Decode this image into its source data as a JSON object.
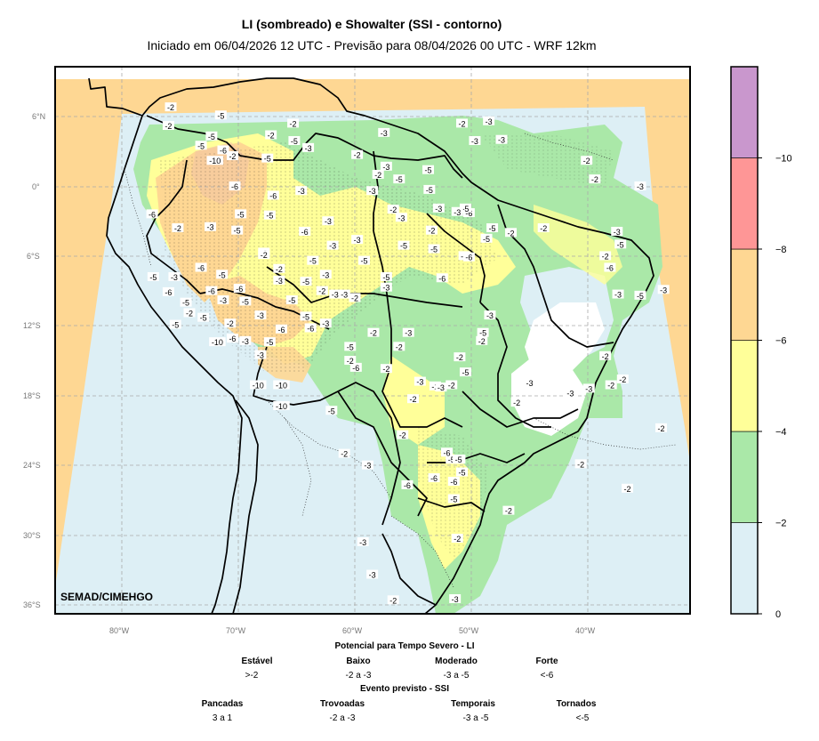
{
  "title": "LI (sombreado) e Showalter (SSI - contorno)",
  "subtitle": "Iniciado em 06/04/2026 12 UTC - Previsão para 08/04/2026 00 UTC - WRF 12km",
  "credit": "SEMAD/CIMEHGO",
  "lat_ticks": [
    "6°N",
    "0°",
    "6°S",
    "12°S",
    "18°S",
    "24°S",
    "30°S",
    "36°S"
  ],
  "lon_ticks": [
    "80°W",
    "70°W",
    "60°W",
    "50°W",
    "40°W"
  ],
  "colorbar": {
    "colors": [
      "#ddeff5",
      "#aae8a8",
      "#ffff99",
      "#fed793",
      "#fe9696",
      "#c997cd"
    ],
    "tick_labels": [
      "0",
      "−2",
      "−4",
      "−6",
      "−8",
      "−10"
    ]
  },
  "li_legend": {
    "heading": "Potencial para Tempo Severo - LI",
    "categories": [
      {
        "name": "Estável",
        "value": ">-2"
      },
      {
        "name": "Baixo",
        "value": "-2 a -3"
      },
      {
        "name": "Moderado",
        "value": "-3 a -5"
      },
      {
        "name": "Forte",
        "value": "<-6"
      }
    ]
  },
  "ssi_legend": {
    "heading": "Evento previsto - SSI",
    "categories": [
      {
        "name": "Pancadas",
        "value": "3 a 1"
      },
      {
        "name": "Trovoadas",
        "value": "-2 a -3"
      },
      {
        "name": "Temporais",
        "value": "-3 a -5"
      },
      {
        "name": "Tornados",
        "value": "<-5"
      }
    ]
  },
  "contour_labels": [
    {
      "t": "-2",
      "lon": -75.8,
      "lat": 6.8
    },
    {
      "t": "-5",
      "lon": -71.5,
      "lat": 6.1
    },
    {
      "t": "-2",
      "lon": -76.0,
      "lat": 5.2
    },
    {
      "t": "-5",
      "lon": -72.3,
      "lat": 4.3
    },
    {
      "t": "-5",
      "lon": -73.2,
      "lat": 3.5
    },
    {
      "t": "-6",
      "lon": -71.3,
      "lat": 3.1
    },
    {
      "t": "-10",
      "lon": -72.0,
      "lat": 2.2
    },
    {
      "t": "-2",
      "lon": -70.5,
      "lat": 2.6
    },
    {
      "t": "-2",
      "lon": -67.2,
      "lat": 4.4
    },
    {
      "t": "-5",
      "lon": -65.2,
      "lat": 3.9
    },
    {
      "t": "-3",
      "lon": -64.0,
      "lat": 3.3
    },
    {
      "t": "-2",
      "lon": -65.3,
      "lat": 5.4
    },
    {
      "t": "-5",
      "lon": -67.5,
      "lat": 2.4
    },
    {
      "t": "-6",
      "lon": -70.3,
      "lat": 0.0
    },
    {
      "t": "-6",
      "lon": -67.0,
      "lat": -0.8
    },
    {
      "t": "-3",
      "lon": -64.6,
      "lat": -0.4
    },
    {
      "t": "-6",
      "lon": -77.4,
      "lat": -2.4
    },
    {
      "t": "-2",
      "lon": -75.2,
      "lat": -3.6
    },
    {
      "t": "-5",
      "lon": -69.8,
      "lat": -2.4
    },
    {
      "t": "-5",
      "lon": -67.3,
      "lat": -2.5
    },
    {
      "t": "-3",
      "lon": -72.4,
      "lat": -3.5
    },
    {
      "t": "-5",
      "lon": -70.1,
      "lat": -3.8
    },
    {
      "t": "-2",
      "lon": -67.8,
      "lat": -5.7
    },
    {
      "t": "-6",
      "lon": -64.3,
      "lat": -3.9
    },
    {
      "t": "-3",
      "lon": -62.3,
      "lat": -3.0
    },
    {
      "t": "-3",
      "lon": -59.8,
      "lat": -4.6
    },
    {
      "t": "-5",
      "lon": -59.2,
      "lat": -6.4
    },
    {
      "t": "-3",
      "lon": -61.9,
      "lat": -5.1
    },
    {
      "t": "-5",
      "lon": -63.6,
      "lat": -6.4
    },
    {
      "t": "-3",
      "lon": -62.5,
      "lat": -7.6
    },
    {
      "t": "-2",
      "lon": -66.5,
      "lat": -7.1
    },
    {
      "t": "-3",
      "lon": -66.5,
      "lat": -8.1
    },
    {
      "t": "-6",
      "lon": -73.2,
      "lat": -7.0
    },
    {
      "t": "-5",
      "lon": -71.4,
      "lat": -7.6
    },
    {
      "t": "-3",
      "lon": -75.5,
      "lat": -7.8
    },
    {
      "t": "-5",
      "lon": -77.3,
      "lat": -7.8
    },
    {
      "t": "-6",
      "lon": -72.3,
      "lat": -9.0
    },
    {
      "t": "-6",
      "lon": -69.9,
      "lat": -8.8
    },
    {
      "t": "-5",
      "lon": -65.4,
      "lat": -9.8
    },
    {
      "t": "-3",
      "lon": -61.7,
      "lat": -9.3
    },
    {
      "t": "-3",
      "lon": -60.9,
      "lat": -9.3
    },
    {
      "t": "-2",
      "lon": -60.0,
      "lat": -9.6
    },
    {
      "t": "-2",
      "lon": -62.8,
      "lat": -9.0
    },
    {
      "t": "-5",
      "lon": -64.2,
      "lat": -8.2
    },
    {
      "t": "-3",
      "lon": -57.3,
      "lat": -8.7
    },
    {
      "t": "-5",
      "lon": -57.3,
      "lat": -7.8
    },
    {
      "t": "-3",
      "lon": -56.0,
      "lat": -2.7
    },
    {
      "t": "-2",
      "lon": -53.4,
      "lat": -3.8
    },
    {
      "t": "-5",
      "lon": -55.8,
      "lat": -5.1
    },
    {
      "t": "-5",
      "lon": -53.2,
      "lat": -5.4
    },
    {
      "t": "-3",
      "lon": -50.6,
      "lat": -6.0
    },
    {
      "t": "-6",
      "lon": -50.2,
      "lat": -6.1
    },
    {
      "t": "-6",
      "lon": -52.5,
      "lat": -7.9
    },
    {
      "t": "-5",
      "lon": -48.7,
      "lat": -4.5
    },
    {
      "t": "-5",
      "lon": -48.2,
      "lat": -3.6
    },
    {
      "t": "-6",
      "lon": -50.2,
      "lat": -2.3
    },
    {
      "t": "-5",
      "lon": -50.5,
      "lat": -1.9
    },
    {
      "t": "-3",
      "lon": -51.2,
      "lat": -2.2
    },
    {
      "t": "-3",
      "lon": -52.8,
      "lat": -1.9
    },
    {
      "t": "-5",
      "lon": -53.6,
      "lat": -0.3
    },
    {
      "t": "-5",
      "lon": -56.2,
      "lat": 0.6
    },
    {
      "t": "-3",
      "lon": -57.3,
      "lat": 1.7
    },
    {
      "t": "-2",
      "lon": -59.8,
      "lat": 2.7
    },
    {
      "t": "-2",
      "lon": -58.0,
      "lat": 1.0
    },
    {
      "t": "-3",
      "lon": -58.5,
      "lat": -0.4
    },
    {
      "t": "-2",
      "lon": -56.7,
      "lat": -2.0
    },
    {
      "t": "-3",
      "lon": -57.5,
      "lat": 4.6
    },
    {
      "t": "-2",
      "lon": -50.8,
      "lat": 5.4
    },
    {
      "t": "-3",
      "lon": -48.5,
      "lat": 5.6
    },
    {
      "t": "-3",
      "lon": -49.7,
      "lat": 3.9
    },
    {
      "t": "-3",
      "lon": -47.4,
      "lat": 4.0
    },
    {
      "t": "-2",
      "lon": -40.1,
      "lat": 2.2
    },
    {
      "t": "-2",
      "lon": -39.4,
      "lat": 0.6
    },
    {
      "t": "-3",
      "lon": -35.5,
      "lat": 0.0
    },
    {
      "t": "-5",
      "lon": -53.7,
      "lat": 1.4
    },
    {
      "t": "-2",
      "lon": -46.6,
      "lat": -4.0
    },
    {
      "t": "-2",
      "lon": -43.8,
      "lat": -3.6
    },
    {
      "t": "-2",
      "lon": -38.5,
      "lat": -6.0
    },
    {
      "t": "-6",
      "lon": -38.1,
      "lat": -7.0
    },
    {
      "t": "-3",
      "lon": -37.5,
      "lat": -3.9
    },
    {
      "t": "-5",
      "lon": -37.2,
      "lat": -5.0
    },
    {
      "t": "-3",
      "lon": -37.4,
      "lat": -9.3
    },
    {
      "t": "-5",
      "lon": -35.5,
      "lat": -9.4
    },
    {
      "t": "-3",
      "lon": -33.5,
      "lat": -8.9
    },
    {
      "t": "-3",
      "lon": -48.4,
      "lat": -11.1
    },
    {
      "t": "-5",
      "lon": -49.0,
      "lat": -12.6
    },
    {
      "t": "-2",
      "lon": -49.1,
      "lat": -13.3
    },
    {
      "t": "-2",
      "lon": -58.4,
      "lat": -12.6
    },
    {
      "t": "-6",
      "lon": -59.9,
      "lat": -15.6
    },
    {
      "t": "-3",
      "lon": -55.4,
      "lat": -12.6
    },
    {
      "t": "-2",
      "lon": -56.2,
      "lat": -13.8
    },
    {
      "t": "-5",
      "lon": -60.4,
      "lat": -13.8
    },
    {
      "t": "-2",
      "lon": -60.4,
      "lat": -15.0
    },
    {
      "t": "-2",
      "lon": -57.3,
      "lat": -15.7
    },
    {
      "t": "-3",
      "lon": -54.4,
      "lat": -16.8
    },
    {
      "t": "-2",
      "lon": -53.1,
      "lat": -17.2
    },
    {
      "t": "-2",
      "lon": -51.7,
      "lat": -17.1
    },
    {
      "t": "-3",
      "lon": -52.6,
      "lat": -17.3
    },
    {
      "t": "-2",
      "lon": -51.0,
      "lat": -14.7
    },
    {
      "t": "-5",
      "lon": -50.5,
      "lat": -16.0
    },
    {
      "t": "-3",
      "lon": -45.0,
      "lat": -16.9
    },
    {
      "t": "-2",
      "lon": -46.1,
      "lat": -18.6
    },
    {
      "t": "-3",
      "lon": -41.5,
      "lat": -17.8
    },
    {
      "t": "-2",
      "lon": -38.5,
      "lat": -14.6
    },
    {
      "t": "-3",
      "lon": -39.9,
      "lat": -17.4
    },
    {
      "t": "-2",
      "lon": -38.0,
      "lat": -17.1
    },
    {
      "t": "-2",
      "lon": -37.0,
      "lat": -16.6
    },
    {
      "t": "-2",
      "lon": -33.7,
      "lat": -20.8
    },
    {
      "t": "-2",
      "lon": -40.6,
      "lat": -23.9
    },
    {
      "t": "-2",
      "lon": -36.6,
      "lat": -26.0
    },
    {
      "t": "-2",
      "lon": -46.8,
      "lat": -27.9
    },
    {
      "t": "-2",
      "lon": -55.0,
      "lat": -18.3
    },
    {
      "t": "-2",
      "lon": -55.9,
      "lat": -21.4
    },
    {
      "t": "-2",
      "lon": -60.9,
      "lat": -23.0
    },
    {
      "t": "-3",
      "lon": -58.9,
      "lat": -24.0
    },
    {
      "t": "-5",
      "lon": -51.7,
      "lat": -23.5
    },
    {
      "t": "-6",
      "lon": -51.0,
      "lat": -23.5
    },
    {
      "t": "-6",
      "lon": -52.1,
      "lat": -22.9
    },
    {
      "t": "-5",
      "lon": -50.8,
      "lat": -24.6
    },
    {
      "t": "-6",
      "lon": -53.2,
      "lat": -25.1
    },
    {
      "t": "-6",
      "lon": -55.5,
      "lat": -25.7
    },
    {
      "t": "-5",
      "lon": -51.5,
      "lat": -26.9
    },
    {
      "t": "-6",
      "lon": -51.5,
      "lat": -25.4
    },
    {
      "t": "-5",
      "lon": -51.1,
      "lat": -23.5
    },
    {
      "t": "-2",
      "lon": -51.2,
      "lat": -30.3
    },
    {
      "t": "-3",
      "lon": -59.3,
      "lat": -30.6
    },
    {
      "t": "-3",
      "lon": -58.5,
      "lat": -33.4
    },
    {
      "t": "-2",
      "lon": -56.7,
      "lat": -35.6
    },
    {
      "t": "-3",
      "lon": -51.4,
      "lat": -35.5
    },
    {
      "t": "-3",
      "lon": -62.5,
      "lat": -11.8
    },
    {
      "t": "-5",
      "lon": -64.2,
      "lat": -11.2
    },
    {
      "t": "-6",
      "lon": -66.3,
      "lat": -12.3
    },
    {
      "t": "-3",
      "lon": -71.3,
      "lat": -9.8
    },
    {
      "t": "-5",
      "lon": -74.5,
      "lat": -10.0
    },
    {
      "t": "-6",
      "lon": -76.0,
      "lat": -9.1
    },
    {
      "t": "-2",
      "lon": -74.2,
      "lat": -10.9
    },
    {
      "t": "-5",
      "lon": -73.0,
      "lat": -11.3
    },
    {
      "t": "-5",
      "lon": -75.4,
      "lat": -11.9
    },
    {
      "t": "-2",
      "lon": -70.7,
      "lat": -11.8
    },
    {
      "t": "-3",
      "lon": -68.1,
      "lat": -11.1
    },
    {
      "t": "-5",
      "lon": -69.4,
      "lat": -9.9
    },
    {
      "t": "-10",
      "lon": -71.8,
      "lat": -13.4
    },
    {
      "t": "-6",
      "lon": -70.5,
      "lat": -13.1
    },
    {
      "t": "-3",
      "lon": -69.4,
      "lat": -13.3
    },
    {
      "t": "-3",
      "lon": -68.1,
      "lat": -14.5
    },
    {
      "t": "-5",
      "lon": -67.3,
      "lat": -13.4
    },
    {
      "t": "-10",
      "lon": -68.3,
      "lat": -17.1
    },
    {
      "t": "-10",
      "lon": -66.3,
      "lat": -17.1
    },
    {
      "t": "-10",
      "lon": -66.3,
      "lat": -18.9
    },
    {
      "t": "-5",
      "lon": -62.0,
      "lat": -19.3
    },
    {
      "t": "-2",
      "lon": -67.8,
      "lat": -5.9
    },
    {
      "t": "-6",
      "lon": -63.8,
      "lat": -12.2
    }
  ]
}
